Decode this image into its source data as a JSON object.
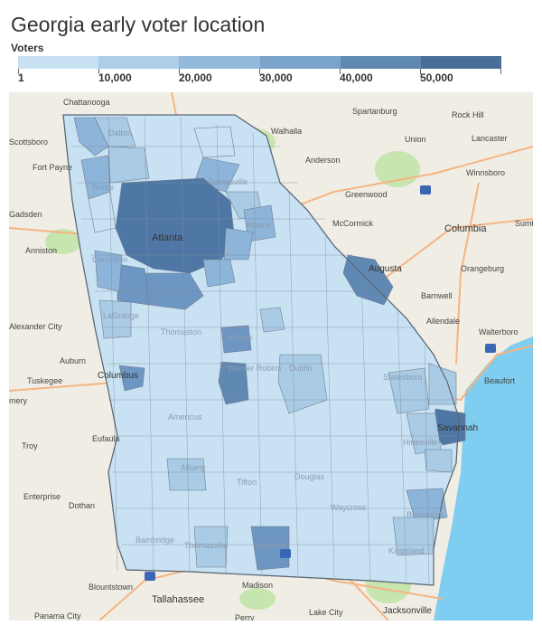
{
  "title": "Georgia early voter location",
  "legend": {
    "title": "Voters",
    "labels": [
      "1",
      "10,000",
      "20,000",
      "30,000",
      "40,000",
      "50,000"
    ],
    "colors": [
      "#c7e0f2",
      "#aecde6",
      "#93b9da",
      "#7aa3c9",
      "#5f88b2",
      "#4a6f96"
    ]
  },
  "colors": {
    "land": "#f0ede4",
    "water": "#7fcdf0",
    "parks": "#bfe3a6",
    "roads": "#f5b482",
    "county_border": "#6f7d8c",
    "low": "#c9e2f3",
    "mid_low": "#a9cbe6",
    "mid": "#8db4d9",
    "high": "#6e96c2",
    "top": "#4f77a5"
  },
  "places": {
    "chattanooga": "Chattanooga",
    "spartanburg": "Spartanburg",
    "rock_hill": "Rock Hill",
    "scottsboro": "Scottsboro",
    "walhalla": "Walhalla",
    "union": "Union",
    "lancaster": "Lancaster",
    "fort_payne": "Fort Payne",
    "dalton": "Dalton",
    "anderson": "Anderson",
    "winnsboro": "Winnsboro",
    "rome": "Rome",
    "gainesville": "Gainesville",
    "greenwood": "Greenwood",
    "gadsden": "Gadsden",
    "mccormick": "McCormick",
    "columbia": "Columbia",
    "sumter": "Sumt",
    "atlanta": "Atlanta",
    "athens": "Athens",
    "anniston": "Anniston",
    "carrollton": "Carrollton",
    "augusta": "Augusta",
    "orangeburg": "Orangeburg",
    "barnwell": "Barnwell",
    "alexander_city": "Alexander City",
    "lagrange": "LaGrange",
    "allendale": "Allendale",
    "walterboro": "Walterboro",
    "thomaston": "Thomaston",
    "macon": "Macon",
    "auburn": "Auburn",
    "tuskegee": "Tuskegee",
    "columbus": "Columbus",
    "dublin": "Dublin",
    "statesboro": "Statesboro",
    "beaufort": "Beaufort",
    "warner_robins": "Warner Robins",
    "americus": "Americus",
    "emery": "mery",
    "savannah": "Savannah",
    "eufaula": "Eufaula",
    "troy": "Troy",
    "albany": "Albany",
    "hinesville": "Hinesville",
    "tifton": "Tifton",
    "douglas": "Douglas",
    "enterprise": "Enterprise",
    "dothan": "Dothan",
    "brunswick": "Brunswick",
    "waycross": "Waycross",
    "bainbridge": "Bainbridge",
    "thomasville": "Thomasville",
    "valdosta": "Valdosta",
    "kingsland": "Kingsland",
    "blountstown": "Blountstown",
    "madison": "Madison",
    "tallahassee": "Tallahassee",
    "panama_city": "Panama City",
    "lake_city": "Lake City",
    "jacksonville": "Jacksonville",
    "perry": "Perry",
    "shields": "I"
  }
}
